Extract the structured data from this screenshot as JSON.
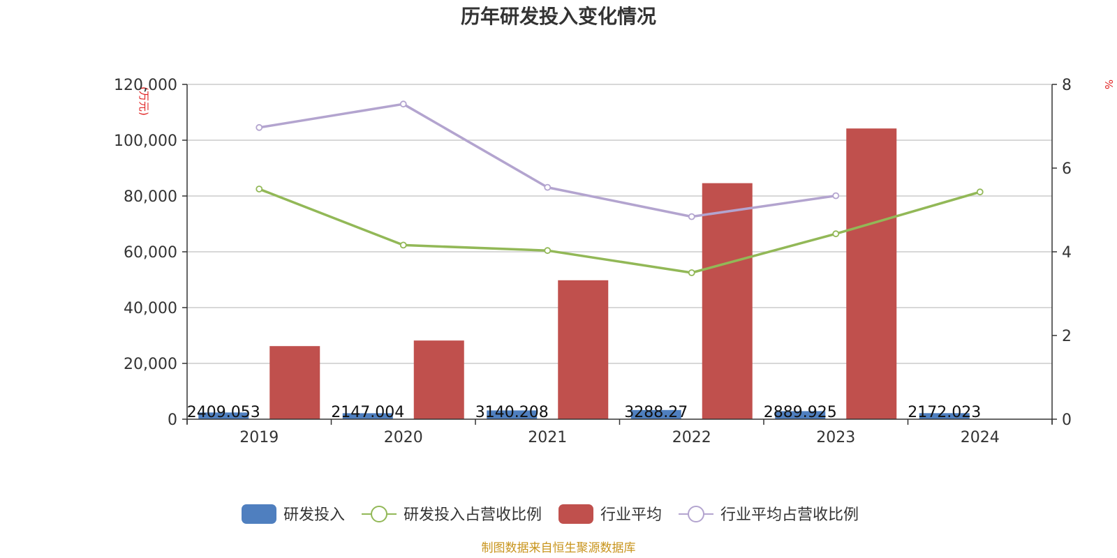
{
  "chart_data": {
    "type": "bar",
    "title": "历年研发投入变化情况",
    "categories": [
      "2019",
      "2020",
      "2021",
      "2022",
      "2023",
      "2024"
    ],
    "y_left": {
      "unit": "(万元)",
      "ylim": [
        0,
        120000
      ],
      "ticks": [
        "0",
        "20,000",
        "40,000",
        "60,000",
        "80,000",
        "100,000",
        "120,000"
      ]
    },
    "y_right": {
      "unit": "%",
      "ylim": [
        0,
        8
      ],
      "ticks": [
        "0",
        "2",
        "4",
        "6",
        "8"
      ]
    },
    "series": [
      {
        "name": "研发投入",
        "kind": "bar",
        "axis": "left",
        "color": "#4f7fbf",
        "values": [
          2409.053,
          2147.004,
          3140.208,
          3288.27,
          2889.925,
          2172.023
        ],
        "labels": [
          "2409.053",
          "2147.004",
          "3140.208",
          "3288.27",
          "2889.925",
          "2172.023"
        ]
      },
      {
        "name": "研发投入占营收比例",
        "kind": "line",
        "axis": "right",
        "color": "#92b857",
        "values": [
          5.5,
          4.16,
          4.03,
          3.5,
          4.43,
          5.43
        ]
      },
      {
        "name": "行业平均",
        "kind": "bar",
        "axis": "left",
        "color": "#c0504d",
        "values": [
          26200,
          28200,
          49800,
          84600,
          104200,
          null
        ]
      },
      {
        "name": "行业平均占营收比例",
        "kind": "line",
        "axis": "right",
        "color": "#b3a4cf",
        "values": [
          6.97,
          7.53,
          5.54,
          4.84,
          5.34,
          null
        ]
      }
    ],
    "grid": true,
    "legend_position": "bottom",
    "source": "制图数据来自恒生聚源数据库"
  }
}
